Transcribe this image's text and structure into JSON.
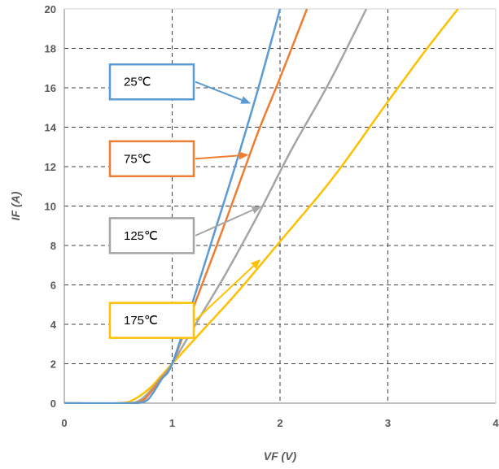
{
  "chart_data": {
    "type": "line",
    "xlabel": "VF (V)",
    "ylabel": "IF (A)",
    "xlim": [
      0,
      4
    ],
    "ylim": [
      0,
      20
    ],
    "x_ticks": [
      "0",
      "1",
      "2",
      "3",
      "4"
    ],
    "y_ticks": [
      "0",
      "2",
      "4",
      "6",
      "8",
      "10",
      "12",
      "14",
      "16",
      "18",
      "20"
    ],
    "grid": true,
    "series": [
      {
        "name": "25℃",
        "color": "#5B9BD5",
        "points": [
          [
            0,
            0
          ],
          [
            0.6,
            0
          ],
          [
            0.75,
            0.1
          ],
          [
            0.82,
            0.5
          ],
          [
            0.9,
            1.2
          ],
          [
            1.0,
            2.0
          ],
          [
            1.2,
            5.3
          ],
          [
            1.4,
            8.8
          ],
          [
            1.6,
            12.3
          ],
          [
            1.8,
            16.0
          ],
          [
            2.0,
            20.0
          ]
        ]
      },
      {
        "name": "75℃",
        "color": "#ED7D31",
        "points": [
          [
            0,
            0
          ],
          [
            0.58,
            0
          ],
          [
            0.72,
            0.12
          ],
          [
            0.8,
            0.55
          ],
          [
            0.9,
            1.25
          ],
          [
            1.0,
            2.0
          ],
          [
            1.2,
            4.9
          ],
          [
            1.4,
            7.8
          ],
          [
            1.6,
            10.8
          ],
          [
            1.8,
            13.8
          ],
          [
            2.0,
            16.5
          ],
          [
            2.25,
            20.0
          ]
        ]
      },
      {
        "name": "125℃",
        "color": "#A5A5A5",
        "points": [
          [
            0,
            0
          ],
          [
            0.56,
            0
          ],
          [
            0.7,
            0.15
          ],
          [
            0.8,
            0.65
          ],
          [
            0.9,
            1.3
          ],
          [
            1.0,
            2.0
          ],
          [
            1.25,
            4.3
          ],
          [
            1.5,
            6.6
          ],
          [
            1.8,
            9.6
          ],
          [
            2.1,
            12.8
          ],
          [
            2.45,
            16.2
          ],
          [
            2.8,
            20.0
          ]
        ]
      },
      {
        "name": "175℃",
        "color": "#FFC000",
        "points": [
          [
            0,
            0
          ],
          [
            0.5,
            0
          ],
          [
            0.65,
            0.2
          ],
          [
            0.8,
            0.8
          ],
          [
            0.9,
            1.4
          ],
          [
            1.0,
            2.0
          ],
          [
            1.3,
            3.8
          ],
          [
            1.6,
            5.6
          ],
          [
            2.0,
            8.2
          ],
          [
            2.5,
            11.5
          ],
          [
            3.0,
            15.3
          ],
          [
            3.35,
            17.9
          ],
          [
            3.65,
            20.0
          ]
        ]
      }
    ],
    "callouts": [
      {
        "label": "25℃",
        "color": "#5B9BD5",
        "box_at": [
          0.45,
          16.3
        ],
        "arrow_to": [
          1.73,
          15.2
        ]
      },
      {
        "label": "75℃",
        "color": "#ED7D31",
        "box_at": [
          0.45,
          12.4
        ],
        "arrow_to": [
          1.71,
          12.6
        ]
      },
      {
        "label": "125℃",
        "color": "#A5A5A5",
        "box_at": [
          0.45,
          8.5
        ],
        "arrow_to": [
          1.83,
          10.0
        ]
      },
      {
        "label": "175℃",
        "color": "#FFC000",
        "box_at": [
          0.45,
          4.2
        ],
        "arrow_to": [
          1.82,
          7.3
        ]
      }
    ]
  }
}
